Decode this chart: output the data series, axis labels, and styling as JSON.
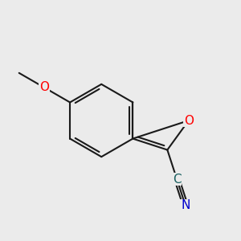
{
  "bg_color": "#ebebeb",
  "bond_color": "#1a1a1a",
  "bond_width": 1.5,
  "atom_colors": {
    "O": "#ff0000",
    "N": "#0000cc",
    "C": "#1a6060"
  },
  "font_size_atom": 11,
  "font_size_cn": 11
}
